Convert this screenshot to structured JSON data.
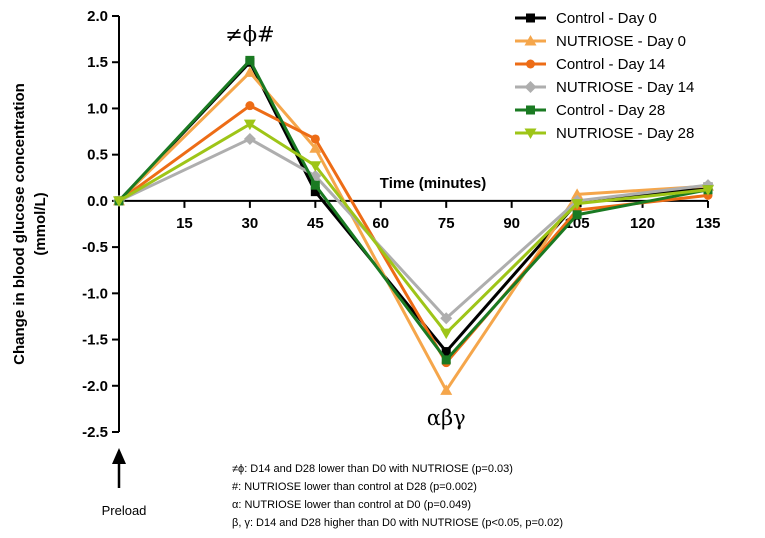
{
  "chart_data": {
    "type": "line",
    "title": "",
    "xlabel": "Time (minutes)",
    "ylabel_line1": "Change in blood glucose concentration",
    "ylabel_line2": "(mmol/L)",
    "x": [
      0,
      30,
      45,
      75,
      105,
      135
    ],
    "x_ticks": [
      "15",
      "30",
      "45",
      "60",
      "75",
      "90",
      "105",
      "120",
      "135"
    ],
    "x_tick_values": [
      15,
      30,
      45,
      60,
      75,
      90,
      105,
      120,
      135
    ],
    "y_ticks": [
      "2.0",
      "1.5",
      "1.0",
      "0.5",
      "0.0",
      "-0.5",
      "-1.0",
      "-1.5",
      "-2.0",
      "-2.5"
    ],
    "y_tick_values": [
      2.0,
      1.5,
      1.0,
      0.5,
      0.0,
      -0.5,
      -1.0,
      -1.5,
      -2.0,
      -2.5
    ],
    "xlim": [
      0,
      135
    ],
    "ylim": [
      -2.5,
      2.0
    ],
    "legend_position": "top-right",
    "series": [
      {
        "name": "Control - Day 0",
        "color": "#000000",
        "marker": "square",
        "values": [
          0.0,
          1.5,
          0.1,
          -1.63,
          -0.02,
          0.15
        ]
      },
      {
        "name": "NUTRIOSE - Day 0",
        "color": "#f5a64b",
        "marker": "triangle-up",
        "values": [
          0.0,
          1.39,
          0.57,
          -2.05,
          0.07,
          0.16
        ]
      },
      {
        "name": "Control - Day 14",
        "color": "#ed6c16",
        "marker": "circle",
        "values": [
          0.0,
          1.03,
          0.67,
          -1.75,
          -0.1,
          0.06
        ]
      },
      {
        "name": "NUTRIOSE - Day 14",
        "color": "#aeaeae",
        "marker": "diamond",
        "values": [
          0.0,
          0.67,
          0.27,
          -1.27,
          0.0,
          0.17
        ]
      },
      {
        "name": "Control - Day 28",
        "color": "#1a7a22",
        "marker": "square",
        "values": [
          0.0,
          1.52,
          0.17,
          -1.72,
          -0.15,
          0.12
        ]
      },
      {
        "name": "NUTRIOSE - Day 28",
        "color": "#9ec518",
        "marker": "triangle-down",
        "values": [
          0.0,
          0.83,
          0.38,
          -1.43,
          -0.03,
          0.12
        ]
      }
    ],
    "annotations": [
      {
        "text": "≠ϕ#",
        "x": 30,
        "y": 1.8
      },
      {
        "text": "αβγ",
        "x": 75,
        "y": -2.35
      }
    ],
    "preload_label": "Preload",
    "footnotes": [
      "≠ϕ: D14 and D28 lower than D0 with NUTRIOSE (p=0.03)",
      "#: NUTRIOSE lower than control at D28 (p=0.002)",
      "α: NUTRIOSE lower than control at D0 (p=0.049)",
      "β, γ: D14 and D28 higher than D0 with NUTRIOSE (p<0.05, p=0.02)"
    ]
  }
}
